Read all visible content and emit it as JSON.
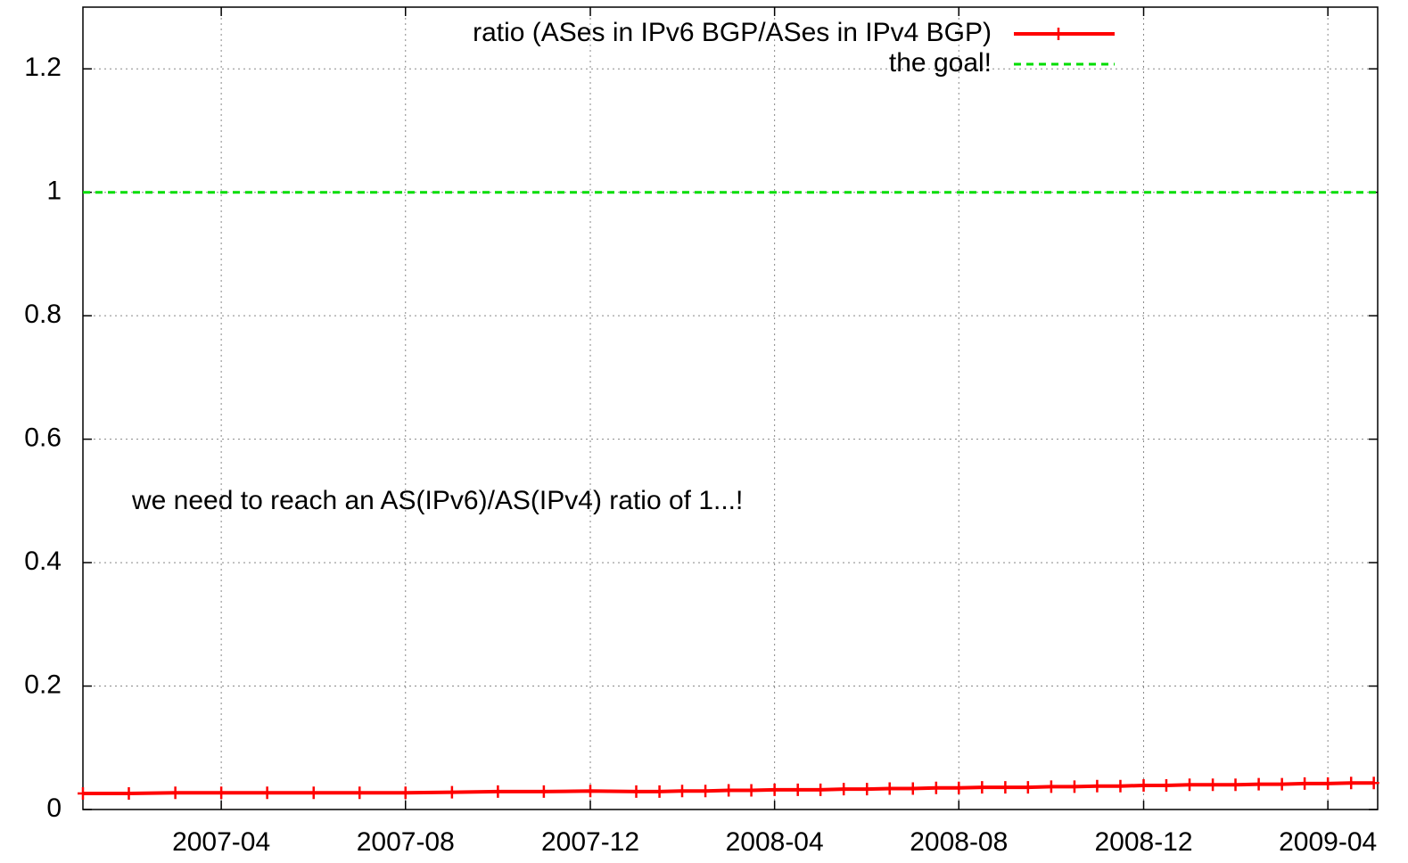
{
  "chart_data": {
    "type": "line",
    "annotation": "we need to reach an AS(IPv6)/AS(IPv4) ratio of 1...!",
    "series": [
      {
        "name": "ratio (ASes in IPv6 BGP/ASes in IPv4 BGP)",
        "color": "#ff0000",
        "markers": true,
        "x": [
          2007.0,
          2007.083,
          2007.167,
          2007.25,
          2007.333,
          2007.417,
          2007.5,
          2007.583,
          2007.667,
          2007.75,
          2007.833,
          2007.917,
          2008.0,
          2008.042,
          2008.083,
          2008.125,
          2008.167,
          2008.208,
          2008.25,
          2008.292,
          2008.333,
          2008.375,
          2008.417,
          2008.458,
          2008.5,
          2008.542,
          2008.583,
          2008.625,
          2008.667,
          2008.708,
          2008.75,
          2008.792,
          2008.833,
          2008.875,
          2008.917,
          2008.958,
          2009.0,
          2009.042,
          2009.083,
          2009.125,
          2009.167,
          2009.208,
          2009.25,
          2009.292,
          2009.333
        ],
        "values": [
          0.026,
          0.026,
          0.027,
          0.027,
          0.027,
          0.027,
          0.027,
          0.027,
          0.028,
          0.029,
          0.029,
          0.03,
          0.029,
          0.029,
          0.03,
          0.03,
          0.031,
          0.031,
          0.032,
          0.032,
          0.032,
          0.033,
          0.033,
          0.034,
          0.034,
          0.035,
          0.035,
          0.036,
          0.036,
          0.036,
          0.037,
          0.037,
          0.038,
          0.038,
          0.039,
          0.039,
          0.04,
          0.04,
          0.04,
          0.041,
          0.041,
          0.042,
          0.042,
          0.043,
          0.043
        ]
      },
      {
        "name": "the goal!",
        "color": "#00dd00",
        "dashed": true,
        "markers": false,
        "x": [
          2007.0,
          2009.34
        ],
        "values": [
          1,
          1
        ]
      }
    ],
    "xlim": [
      2007.0,
      2009.34
    ],
    "ylim": [
      0,
      1.3
    ],
    "xticks": [
      {
        "value": 2007.25,
        "label": "2007-04"
      },
      {
        "value": 2007.583,
        "label": "2007-08"
      },
      {
        "value": 2007.917,
        "label": "2007-12"
      },
      {
        "value": 2008.25,
        "label": "2008-04"
      },
      {
        "value": 2008.583,
        "label": "2008-08"
      },
      {
        "value": 2008.917,
        "label": "2008-12"
      },
      {
        "value": 2009.25,
        "label": "2009-04"
      }
    ],
    "yticks": [
      0,
      0.2,
      0.4,
      0.6,
      0.8,
      1,
      1.2
    ],
    "grid": true,
    "legend": "top-right"
  }
}
